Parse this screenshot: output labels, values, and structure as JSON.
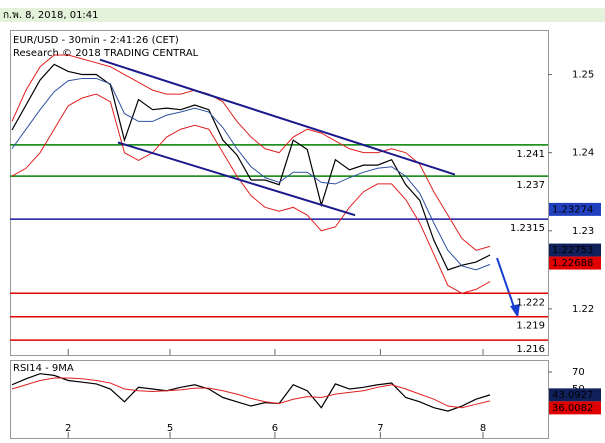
{
  "header": {
    "timestamp": "ก.พ. 8, 2018, 01:41"
  },
  "chart_data": [
    {
      "type": "line",
      "title": "EUR/USD - 30min - 2:41:26 (CET)",
      "subtitle": "Research © 2018 TRADING CENTRAL",
      "x": [
        0,
        1,
        2,
        3,
        4,
        5,
        6,
        7,
        8,
        9,
        10,
        11,
        12,
        13,
        14,
        15,
        16,
        17,
        18,
        19,
        20,
        21,
        22,
        23,
        24,
        25,
        26,
        27,
        28,
        29,
        30,
        31,
        32,
        33,
        34
      ],
      "xlim": [
        -0.14,
        38.12
      ],
      "xticks": [
        {
          "value": 4,
          "label": "2"
        },
        {
          "value": 11.24,
          "label": "5"
        },
        {
          "value": 18.7,
          "label": "6"
        },
        {
          "value": 26.2,
          "label": "7"
        },
        {
          "value": 33.5,
          "label": "8"
        }
      ],
      "ylim": [
        1.2141,
        1.2557
      ],
      "yticks": [
        1.25,
        1.24,
        1.23,
        1.22
      ],
      "series": [
        {
          "color": "#000000",
          "values": [
            1.2429,
            1.2461,
            1.2493,
            1.2513,
            1.2504,
            1.25,
            1.25,
            1.2487,
            1.2416,
            1.2468,
            1.2455,
            1.2457,
            1.2455,
            1.2461,
            1.2455,
            1.2416,
            1.2397,
            1.2365,
            1.2365,
            1.2359,
            1.2416,
            1.2404,
            1.2333,
            1.2391,
            1.2378,
            1.2384,
            1.2384,
            1.2391,
            1.2359,
            1.2339,
            1.2288,
            1.225,
            1.2256,
            1.226,
            1.2269
          ]
        },
        {
          "color": "#e02020",
          "values": [
            1.244,
            1.248,
            1.251,
            1.2525,
            1.2525,
            1.252,
            1.2515,
            1.251,
            1.25,
            1.249,
            1.248,
            1.2475,
            1.2475,
            1.248,
            1.2475,
            1.2465,
            1.244,
            1.242,
            1.2405,
            1.24,
            1.242,
            1.243,
            1.2425,
            1.2415,
            1.2405,
            1.24,
            1.24,
            1.2405,
            1.24,
            1.2385,
            1.235,
            1.232,
            1.229,
            1.2275,
            1.228
          ]
        },
        {
          "color": "#e02020",
          "values": [
            1.237,
            1.238,
            1.24,
            1.243,
            1.246,
            1.247,
            1.2475,
            1.2465,
            1.24,
            1.239,
            1.24,
            1.242,
            1.243,
            1.2435,
            1.243,
            1.24,
            1.237,
            1.2345,
            1.233,
            1.2325,
            1.233,
            1.232,
            1.23,
            1.2305,
            1.233,
            1.235,
            1.236,
            1.236,
            1.234,
            1.231,
            1.227,
            1.223,
            1.222,
            1.2225,
            1.2235
          ]
        },
        {
          "color": "#3050a0",
          "values": [
            1.2405,
            1.243,
            1.2455,
            1.2478,
            1.2492,
            1.2495,
            1.2495,
            1.2488,
            1.245,
            1.244,
            1.244,
            1.2448,
            1.2452,
            1.2457,
            1.2452,
            1.2432,
            1.2405,
            1.2382,
            1.2368,
            1.2362,
            1.2375,
            1.2375,
            1.2362,
            1.236,
            1.2368,
            1.2375,
            1.238,
            1.2382,
            1.237,
            1.2348,
            1.231,
            1.2275,
            1.2255,
            1.225,
            1.2257
          ]
        }
      ],
      "trendlines": [
        {
          "color": "#1a1a8c",
          "x": [
            6.26,
            31.5
          ],
          "values": [
            1.2519,
            1.2372
          ]
        },
        {
          "color": "#1a1a8c",
          "x": [
            7.54,
            24.4
          ],
          "values": [
            1.2413,
            1.232
          ]
        }
      ],
      "levels": [
        {
          "value": 1.241,
          "color": "#008000"
        },
        {
          "value": 1.237,
          "color": "#008000"
        },
        {
          "value": 1.2315,
          "color": "#1a1aa0"
        },
        {
          "value": 1.222,
          "color": "#e00000"
        },
        {
          "value": 1.219,
          "color": "#e00000"
        },
        {
          "value": 1.216,
          "color": "#e00000"
        }
      ],
      "price_labels": [
        {
          "value": 1.23274,
          "color": "#2040c0"
        },
        {
          "value": 1.22753,
          "color": "#10205a"
        },
        {
          "value": 1.22688,
          "color": "#e00000"
        }
      ]
    },
    {
      "type": "line",
      "title": "RSI14 - 9MA",
      "x": [
        0,
        1,
        2,
        3,
        4,
        5,
        6,
        7,
        8,
        9,
        10,
        11,
        12,
        13,
        14,
        15,
        16,
        17,
        18,
        19,
        20,
        21,
        22,
        23,
        24,
        25,
        26,
        27,
        28,
        29,
        30,
        31,
        32,
        33,
        34
      ],
      "xlim": [
        -0.14,
        38.12
      ],
      "ylim": [
        -7.6,
        84.1
      ],
      "yticks": [
        70,
        50
      ],
      "series": [
        {
          "color": "#000000",
          "values": [
            55,
            62,
            68,
            66,
            60,
            58,
            56,
            50,
            35,
            52,
            50,
            48,
            52,
            55,
            50,
            40,
            35,
            30,
            34,
            33,
            55,
            48,
            28,
            56,
            50,
            52,
            55,
            57,
            40,
            35,
            28,
            24,
            30,
            38,
            43.0927
          ]
        },
        {
          "color": "#e02020",
          "values": [
            50,
            55,
            60,
            63,
            63,
            62,
            60,
            57,
            50,
            48,
            47,
            48,
            49,
            51,
            51,
            48,
            44,
            39,
            35,
            33,
            38,
            41,
            40,
            44,
            46,
            48,
            52,
            55,
            50,
            44,
            38,
            30,
            28,
            32,
            36.0082
          ]
        }
      ],
      "value_labels_boxes": [
        {
          "value": 43.0927,
          "color": "#10205a"
        },
        {
          "value": 36.0082,
          "color": "#e00000"
        }
      ]
    }
  ]
}
